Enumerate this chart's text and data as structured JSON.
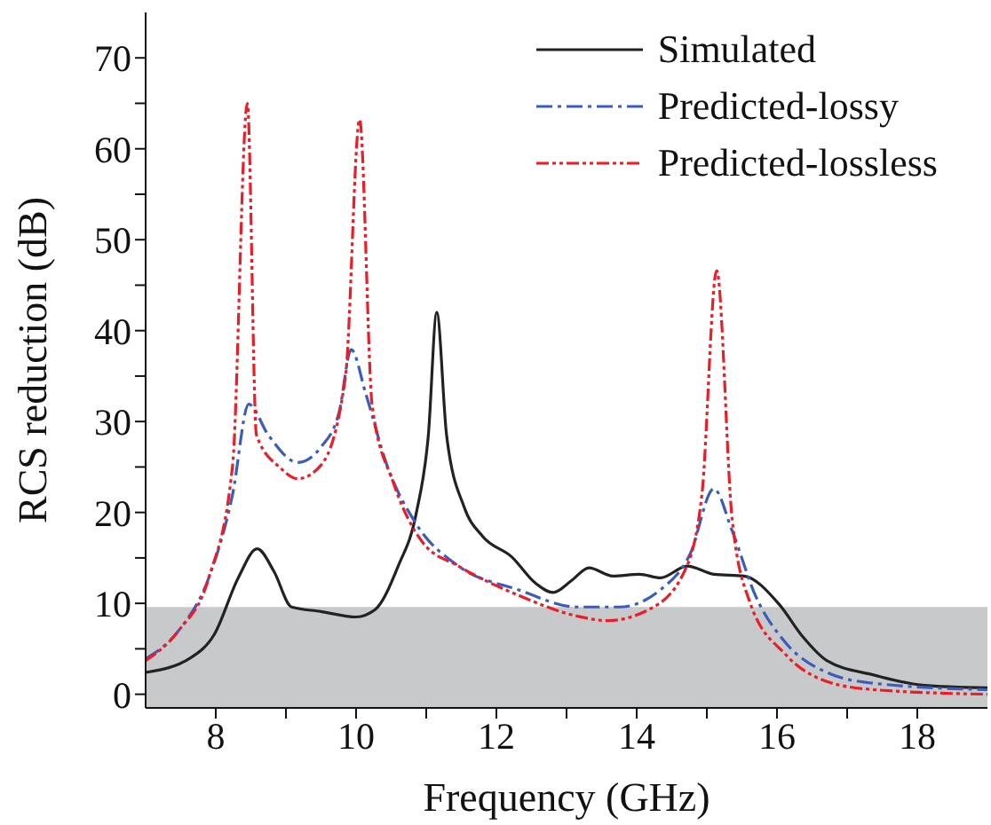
{
  "chart_data": {
    "type": "line",
    "xlabel": "Frequency (GHz)",
    "ylabel": "RCS reduction (dB)",
    "xlim": [
      7,
      19
    ],
    "ylim": [
      -1.5,
      75
    ],
    "xticks": [
      8,
      {
        "value": 9,
        "label": null
      },
      10,
      {
        "value": 11,
        "label": null
      },
      12,
      {
        "value": 13,
        "label": null
      },
      14,
      {
        "value": 15,
        "label": null
      },
      16,
      {
        "value": 17,
        "label": null
      },
      18
    ],
    "yticks": [
      0,
      {
        "value": 5,
        "label": null
      },
      10,
      {
        "value": 15,
        "label": null
      },
      20,
      {
        "value": 25,
        "label": null
      },
      30,
      {
        "value": 35,
        "label": null
      },
      40,
      {
        "value": 45,
        "label": null
      },
      50,
      {
        "value": 55,
        "label": null
      },
      60,
      {
        "value": 65,
        "label": null
      },
      70
    ],
    "grid": false,
    "legend": "top right",
    "marker": "none",
    "bands": [
      {
        "axis": "y",
        "from": -1.5,
        "to": 9.6,
        "color": "#c8c9cb"
      }
    ],
    "series": [
      {
        "name": "Simulated",
        "color": "#222222",
        "line_style": "solid",
        "x": [
          7.0,
          7.64,
          7.98,
          8.32,
          8.59,
          8.83,
          9.08,
          9.5,
          10.0,
          10.27,
          10.6,
          10.86,
          11.03,
          11.15,
          11.29,
          11.54,
          11.8,
          12.22,
          12.56,
          12.81,
          13.07,
          13.32,
          13.66,
          14.04,
          14.34,
          14.72,
          15.1,
          15.53,
          16.03,
          16.37,
          16.71,
          17.39,
          18.07,
          19.0
        ],
        "values": [
          2.4,
          4.0,
          6.6,
          12.8,
          16.0,
          13.5,
          9.6,
          9.1,
          8.5,
          9.3,
          14.1,
          20,
          28.5,
          42,
          28.5,
          20.6,
          17.4,
          15.1,
          12.2,
          11.2,
          12.5,
          13.9,
          13.0,
          13.2,
          12.8,
          14.1,
          13.2,
          13.0,
          9.9,
          6.3,
          3.7,
          2.1,
          1.0,
          0.7
        ]
      },
      {
        "name": "Predicted-lossy",
        "color": "#3a5bbf",
        "line_style": "dashed",
        "x": [
          7.0,
          7.47,
          7.9,
          8.24,
          8.47,
          8.75,
          9.17,
          9.5,
          9.76,
          9.93,
          10.14,
          10.44,
          10.86,
          11.46,
          12.31,
          13.15,
          13.75,
          14.34,
          14.76,
          15.1,
          15.36,
          15.69,
          16.12,
          16.71,
          17.39,
          19.0
        ],
        "values": [
          3.9,
          7.0,
          12.8,
          22,
          31.9,
          28.5,
          25.5,
          27.2,
          31.1,
          37.9,
          33,
          25.2,
          18.7,
          14.1,
          11.5,
          9.6,
          9.6,
          11.5,
          15.4,
          22.6,
          18,
          10.9,
          5.7,
          2.4,
          1.2,
          0.5
        ]
      },
      {
        "name": "Predicted-lossless",
        "color": "#ee1c25",
        "line_style": "dotted",
        "x": [
          7.0,
          7.47,
          7.9,
          8.24,
          8.45,
          8.58,
          8.92,
          9.17,
          9.5,
          9.85,
          10.05,
          10.23,
          10.53,
          10.95,
          11.46,
          12.31,
          13.15,
          13.58,
          14.17,
          14.68,
          14.93,
          15.14,
          15.36,
          15.61,
          16.12,
          16.71,
          17.39,
          19.0
        ],
        "values": [
          3.7,
          7.0,
          12.8,
          25.2,
          65,
          28.5,
          24.9,
          23.7,
          25.2,
          35,
          63.2,
          31.7,
          23.3,
          16.7,
          14.1,
          10.9,
          8.6,
          8.1,
          9.3,
          13.5,
          22,
          46.6,
          19.3,
          10.2,
          4.4,
          1.4,
          0.5,
          0
        ]
      }
    ]
  }
}
